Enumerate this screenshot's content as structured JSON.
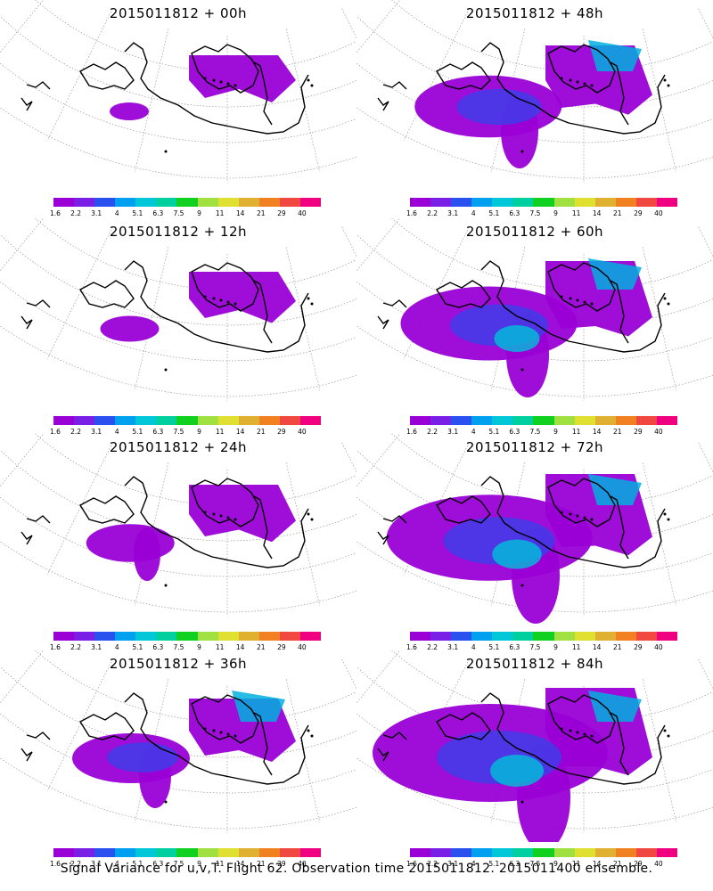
{
  "panels": [
    {
      "title": "2015011812 + 00h",
      "spread": 0.0
    },
    {
      "title": "2015011812 + 48h",
      "spread": 0.55
    },
    {
      "title": "2015011812 + 12h",
      "spread": 0.1
    },
    {
      "title": "2015011812 + 60h",
      "spread": 0.7
    },
    {
      "title": "2015011812 + 24h",
      "spread": 0.25
    },
    {
      "title": "2015011812 + 72h",
      "spread": 0.85
    },
    {
      "title": "2015011812 + 36h",
      "spread": 0.4
    },
    {
      "title": "2015011812 + 84h",
      "spread": 1.0
    }
  ],
  "colorbar": {
    "labels": [
      "1.6",
      "2.2",
      "3.1",
      "4",
      "5.1",
      "6.3",
      "7.5",
      "9",
      "11",
      "14",
      "21",
      "29",
      "40"
    ],
    "colors": [
      "#9a00d6",
      "#7a20e6",
      "#2a50f0",
      "#00a0f0",
      "#00c8d8",
      "#00d0a0",
      "#10d020",
      "#a0e040",
      "#e0e030",
      "#e0b030",
      "#f08020",
      "#f04840",
      "#f00080"
    ]
  },
  "caption": "Signal Variance for u,v,T. Flight 62. Observation time 2015011812. 2015011400 ensemble."
}
